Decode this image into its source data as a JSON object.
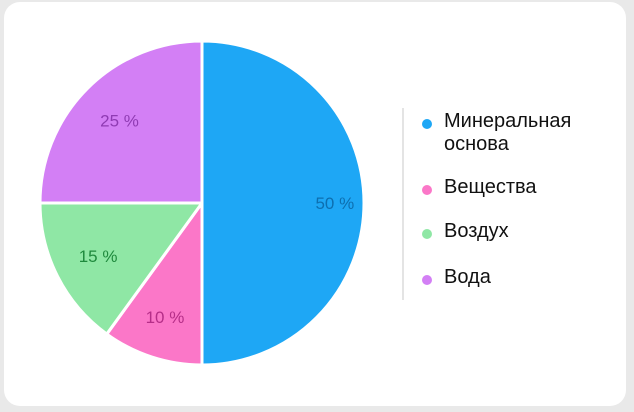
{
  "chart_data": {
    "type": "pie",
    "slices": [
      {
        "name": "Минеральная\nоснова",
        "value": 50,
        "label": "50 %",
        "color": "#1ea7f5",
        "label_color": "#0d6fb0"
      },
      {
        "name": "Вещества",
        "value": 10,
        "label": "10 %",
        "color": "#fb77c8",
        "label_color": "#b52e88"
      },
      {
        "name": "Воздух",
        "value": 15,
        "label": "15 %",
        "color": "#8fe7a5",
        "label_color": "#1f8a3d"
      },
      {
        "name": "Вода",
        "value": 25,
        "label": "25 %",
        "color": "#d37ff5",
        "label_color": "#8f3bb3"
      }
    ],
    "legend_position": "right"
  }
}
